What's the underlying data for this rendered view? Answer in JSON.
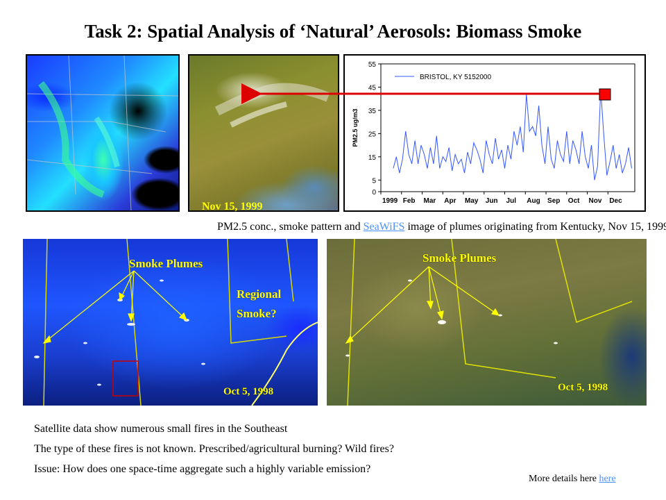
{
  "slide": {
    "title": "Task 2: Spatial Analysis of ‘Natural’ Aerosols: Biomass Smoke",
    "nov_date": "Nov 15, 1999",
    "caption_before": "PM2.5 conc., smoke pattern and ",
    "caption_link": "SeaWiFS",
    "caption_after": " image of plumes originating from Kentucky, Nov 15, 1999.",
    "left_smoke_label": "Smoke Plumes",
    "regional_smoke_line1": "Regional",
    "regional_smoke_line2": "Smoke?",
    "left_date": "Oct 5, 1998",
    "right_smoke_label": "Smoke Plumes",
    "right_date": "Oct 5, 1998",
    "note1": "Satellite data show numerous small fires in the Southeast",
    "note2": "The type of these fires is not known. Prescribed/agricultural burning? Wild fires?",
    "note3": "Issue: How does one space-time aggregate such a highly variable emission?",
    "more_text": "More details here ",
    "more_link": "here"
  },
  "chart_data": {
    "type": "line",
    "legend": "BRISTOL, KY 5152000",
    "ylabel": "PM2.5 ug/m3",
    "ylim": [
      0,
      55
    ],
    "yticks": [
      0,
      5,
      15,
      25,
      35,
      45,
      55
    ],
    "xlim": [
      1,
      13.3
    ],
    "xticks": [
      {
        "label": "1999",
        "x": 1
      },
      {
        "label": "Feb",
        "x": 2
      },
      {
        "label": "Mar",
        "x": 3
      },
      {
        "label": "Apr",
        "x": 4
      },
      {
        "label": "May",
        "x": 5
      },
      {
        "label": "Jun",
        "x": 6
      },
      {
        "label": "Jul",
        "x": 7
      },
      {
        "label": "Aug",
        "x": 8
      },
      {
        "label": "Sep",
        "x": 9
      },
      {
        "label": "Oct",
        "x": 10
      },
      {
        "label": "Nov",
        "x": 11
      },
      {
        "label": "Dec",
        "x": 12
      }
    ],
    "series": [
      {
        "name": "BRISTOL, KY 5152000",
        "color": "#3355ff",
        "x": [
          1.6,
          1.75,
          1.9,
          2.05,
          2.2,
          2.35,
          2.5,
          2.65,
          2.8,
          2.95,
          3.1,
          3.25,
          3.4,
          3.55,
          3.7,
          3.85,
          4.0,
          4.15,
          4.3,
          4.45,
          4.6,
          4.75,
          4.9,
          5.05,
          5.2,
          5.35,
          5.5,
          5.65,
          5.8,
          5.95,
          6.1,
          6.25,
          6.4,
          6.55,
          6.7,
          6.85,
          7.0,
          7.15,
          7.3,
          7.45,
          7.6,
          7.75,
          7.9,
          8.05,
          8.2,
          8.35,
          8.5,
          8.65,
          8.8,
          8.95,
          9.1,
          9.25,
          9.4,
          9.55,
          9.7,
          9.85,
          10.0,
          10.15,
          10.3,
          10.45,
          10.6,
          10.75,
          10.9,
          11.05,
          11.2,
          11.35,
          11.5,
          11.65,
          11.8,
          11.95,
          12.1,
          12.25,
          12.4,
          12.55,
          12.7,
          12.85,
          13.0,
          13.15
        ],
        "y": [
          10,
          15,
          8,
          14,
          26,
          16,
          12,
          22,
          12,
          20,
          16,
          10,
          19,
          12,
          24,
          10,
          15,
          13,
          19,
          9,
          16,
          12,
          14,
          8,
          17,
          12,
          21,
          18,
          14,
          8,
          22,
          16,
          12,
          23,
          14,
          18,
          10,
          20,
          14,
          26,
          20,
          28,
          17,
          42,
          26,
          28,
          24,
          37,
          20,
          12,
          28,
          14,
          10,
          22,
          16,
          13,
          26,
          12,
          22,
          18,
          12,
          26,
          15,
          10,
          20,
          5,
          11,
          44,
          24,
          7,
          13,
          20,
          10,
          16,
          8,
          12,
          19,
          10
        ]
      }
    ]
  },
  "highlight_marker_color": "#ff0000",
  "arrow_color": "#dd0000"
}
